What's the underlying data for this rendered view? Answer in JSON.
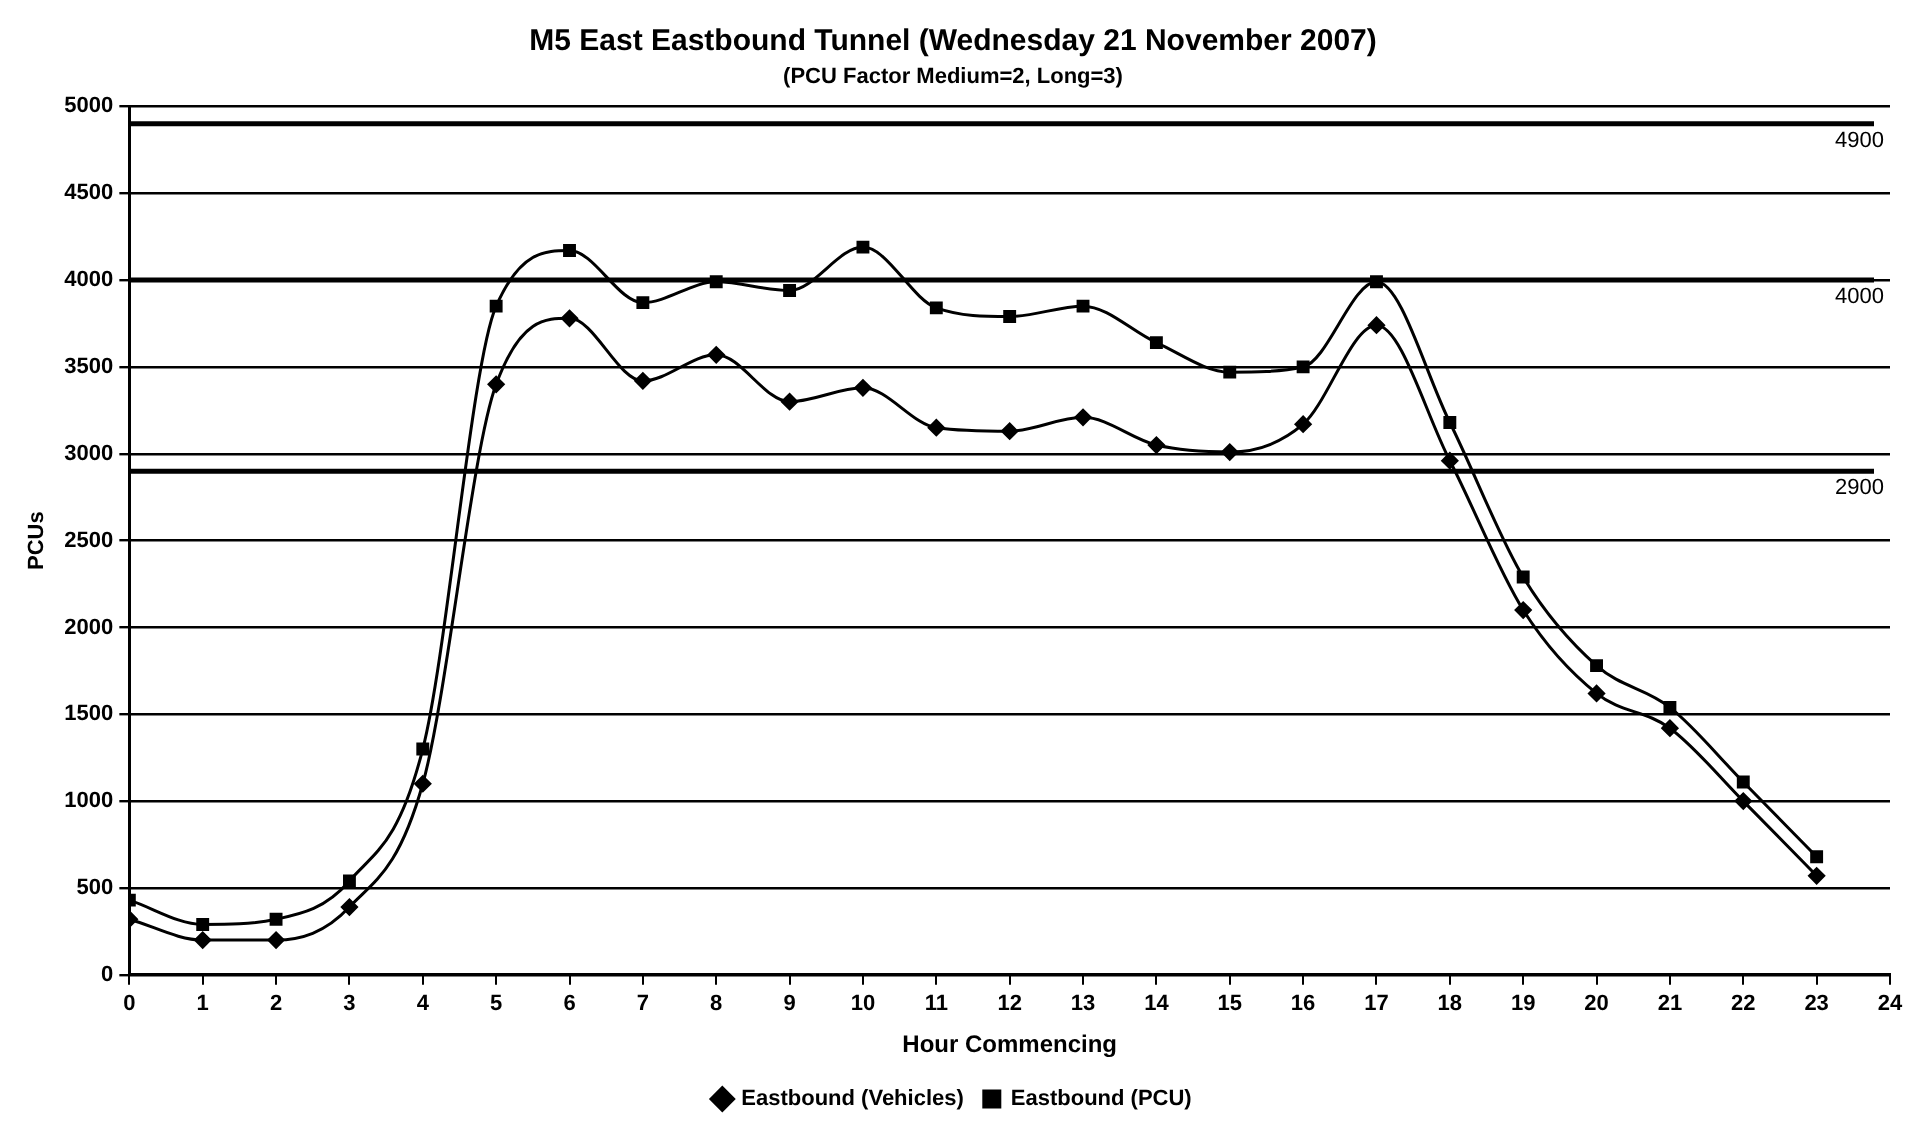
{
  "chart_data": {
    "type": "line",
    "title": "M5 East Eastbound Tunnel (Wednesday 21 November 2007)",
    "subtitle": "(PCU Factor Medium=2, Long=3)",
    "xlabel": "Hour Commencing",
    "ylabel": "PCUs",
    "x": [
      0,
      1,
      2,
      3,
      4,
      5,
      6,
      7,
      8,
      9,
      10,
      11,
      12,
      13,
      14,
      15,
      16,
      17,
      18,
      19,
      20,
      21,
      22,
      23
    ],
    "xlim": [
      0,
      24
    ],
    "xticks": [
      0,
      1,
      2,
      3,
      4,
      5,
      6,
      7,
      8,
      9,
      10,
      11,
      12,
      13,
      14,
      15,
      16,
      17,
      18,
      19,
      20,
      21,
      22,
      23,
      24
    ],
    "ylim": [
      0,
      5000
    ],
    "yticks": [
      0,
      500,
      1000,
      1500,
      2000,
      2500,
      3000,
      3500,
      4000,
      4500,
      5000
    ],
    "grid": "y",
    "legend": "bottom",
    "series": [
      {
        "name": "Eastbound (Vehicles)",
        "color": "#000000",
        "marker": "diamond",
        "values": [
          320,
          200,
          200,
          390,
          1100,
          3400,
          3780,
          3420,
          3570,
          3300,
          3380,
          3150,
          3130,
          3210,
          3050,
          3010,
          3170,
          3740,
          2960,
          2100,
          1620,
          1420,
          1000,
          570
        ]
      },
      {
        "name": "Eastbound (PCU)",
        "color": "#000000",
        "marker": "square",
        "values": [
          430,
          290,
          320,
          540,
          1300,
          3850,
          4170,
          3870,
          3990,
          3940,
          4190,
          3840,
          3790,
          3850,
          3640,
          3470,
          3500,
          3990,
          3180,
          2290,
          1780,
          1540,
          1110,
          680
        ]
      }
    ],
    "ref_lines": [
      {
        "axis": "y",
        "value": 4900,
        "label": "4900"
      },
      {
        "axis": "y",
        "value": 4000,
        "label": "4000"
      },
      {
        "axis": "y",
        "value": 2900,
        "label": "2900"
      }
    ]
  }
}
